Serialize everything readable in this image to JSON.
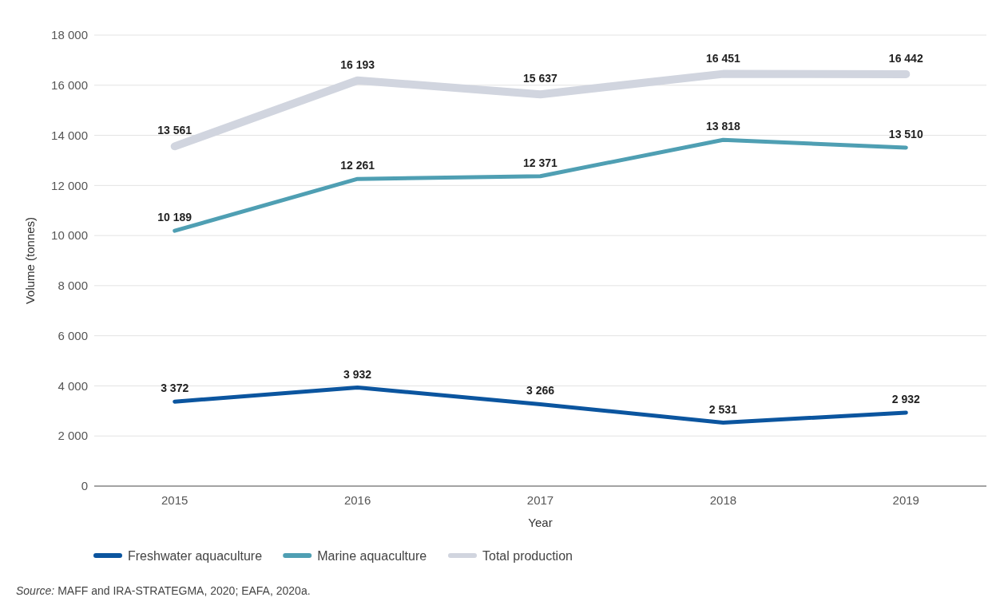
{
  "chart_data": {
    "type": "line",
    "categories": [
      "2015",
      "2016",
      "2017",
      "2018",
      "2019"
    ],
    "series": [
      {
        "name": "Freshwater aquaculture",
        "color": "#0b559f",
        "values": [
          3372,
          3932,
          3266,
          2531,
          2932
        ],
        "value_labels": [
          "3 372",
          "3 932",
          "3 266",
          "2 531",
          "2 932"
        ]
      },
      {
        "name": "Marine aquaculture",
        "color": "#4f9fb3",
        "values": [
          10189,
          12261,
          12371,
          13818,
          13510
        ],
        "value_labels": [
          "10 189",
          "12 261",
          "12 371",
          "13 818",
          "13 510"
        ]
      },
      {
        "name": "Total production",
        "color": "#d1d5df",
        "values": [
          13561,
          16193,
          15637,
          16451,
          16442
        ],
        "value_labels": [
          "13 561",
          "16 193",
          "15 637",
          "16 451",
          "16 442"
        ]
      }
    ],
    "xlabel": "Year",
    "ylabel": "Volume (tonnes)",
    "ylim": [
      0,
      18000
    ],
    "yticks": [
      {
        "value": 0,
        "label": "0"
      },
      {
        "value": 2000,
        "label": "2 000"
      },
      {
        "value": 4000,
        "label": "4 000"
      },
      {
        "value": 6000,
        "label": "6 000"
      },
      {
        "value": 8000,
        "label": "8 000"
      },
      {
        "value": 10000,
        "label": "10 000"
      },
      {
        "value": 12000,
        "label": "12 000"
      },
      {
        "value": 14000,
        "label": "14 000"
      },
      {
        "value": 16000,
        "label": "16 000"
      },
      {
        "value": 18000,
        "label": "18 000"
      }
    ],
    "grid": "y",
    "legend": "bottom left",
    "marker": "none",
    "line_style": "solid",
    "annotations": [
      "Source: MAFF and IRA-STRATEGMA, 2020; EAFA, 2020a."
    ]
  }
}
